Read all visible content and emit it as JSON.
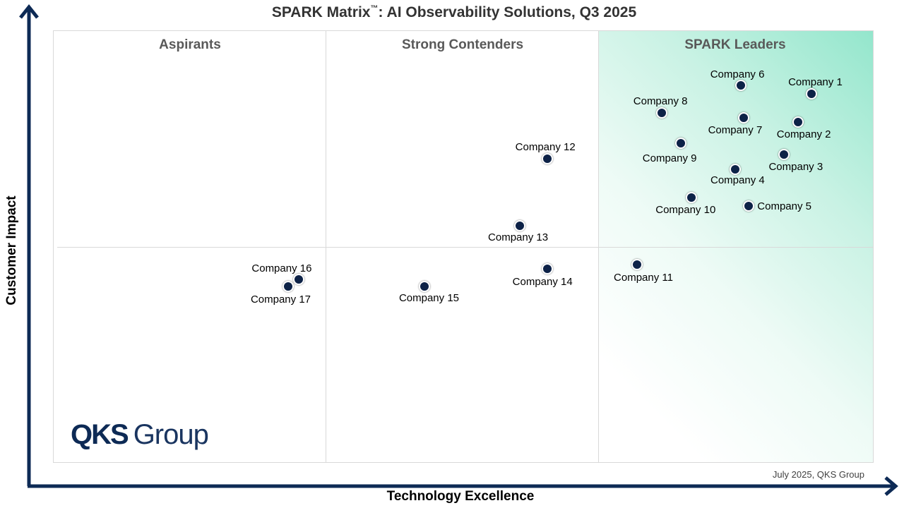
{
  "title": "SPARK Matrix",
  "title_mark": "™",
  "title_rest": ": AI Observability Solutions, Q3 2025",
  "quadrants": [
    "Aspirants",
    "Strong Contenders",
    "SPARK Leaders"
  ],
  "date_note": "July 2025, QKS Group",
  "logo": {
    "bold": "QKS",
    "light": "Group"
  },
  "colors": {
    "dot": "#0d2247",
    "axis": "#0d2a55",
    "leader_zone": "#93e6cc"
  },
  "chart_data": {
    "type": "scatter",
    "title": "SPARK Matrix™: AI Observability Solutions, Q3 2025",
    "xlabel": "Technology Excellence",
    "ylabel": "Customer Impact",
    "xlim": [
      0,
      3
    ],
    "ylim": [
      0,
      2
    ],
    "grid": true,
    "points": [
      {
        "name": "Company 1",
        "x": 2.78,
        "y": 1.71
      },
      {
        "name": "Company 2",
        "x": 2.73,
        "y": 1.58
      },
      {
        "name": "Company 3",
        "x": 2.68,
        "y": 1.43
      },
      {
        "name": "Company 4",
        "x": 2.5,
        "y": 1.36
      },
      {
        "name": "Company 5",
        "x": 2.55,
        "y": 1.19
      },
      {
        "name": "Company 6",
        "x": 2.52,
        "y": 1.75
      },
      {
        "name": "Company 7",
        "x": 2.53,
        "y": 1.6
      },
      {
        "name": "Company 8",
        "x": 2.23,
        "y": 1.62
      },
      {
        "name": "Company 9",
        "x": 2.3,
        "y": 1.48
      },
      {
        "name": "Company 10",
        "x": 2.34,
        "y": 1.23
      },
      {
        "name": "Company 11",
        "x": 2.14,
        "y": 0.92
      },
      {
        "name": "Company 12",
        "x": 1.81,
        "y": 1.41
      },
      {
        "name": "Company 13",
        "x": 1.71,
        "y": 1.1
      },
      {
        "name": "Company 14",
        "x": 1.81,
        "y": 0.9
      },
      {
        "name": "Company 15",
        "x": 1.36,
        "y": 0.82
      },
      {
        "name": "Company 16",
        "x": 0.9,
        "y": 0.85
      },
      {
        "name": "Company 17",
        "x": 0.86,
        "y": 0.82
      }
    ]
  }
}
